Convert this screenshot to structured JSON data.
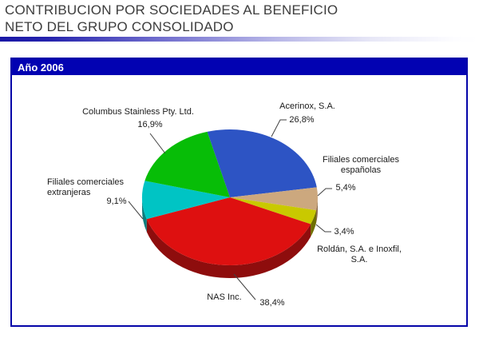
{
  "title": {
    "line1": "CONTRIBUCION POR SOCIEDADES AL BENEFICIO",
    "line2": "NETO DEL GRUPO CONSOLIDADO"
  },
  "panel": {
    "header": "Año 2006"
  },
  "chart_data": {
    "type": "pie",
    "title": "Año 2006",
    "style": "3d-pie",
    "unit": "%",
    "start_angle_clockwise_from_top_deg": -15,
    "legend_position": "none (callout labels with leader lines)",
    "slices": [
      {
        "label": "Acerinox, S.A.",
        "value": 26.8,
        "pct_label": "26,8%",
        "color": "#2d54c4",
        "side_color": "#1c3785"
      },
      {
        "label": "Filiales comerciales españolas",
        "value": 5.4,
        "pct_label": "5,4%",
        "color": "#cca87e",
        "side_color": "#8a6a4a"
      },
      {
        "label": "Roldán, S.A. e Inoxfil, S.A.",
        "value": 3.4,
        "pct_label": "3,4%",
        "color": "#c9c900",
        "side_color": "#6f7000"
      },
      {
        "label": "NAS Inc.",
        "value": 38.4,
        "pct_label": "38,4%",
        "color": "#de1010",
        "side_color": "#8e0d0d"
      },
      {
        "label": "Filiales comerciales extranjeras",
        "value": 9.1,
        "pct_label": "9,1%",
        "color": "#00c4c4",
        "side_color": "#0b7d7d"
      },
      {
        "label": "Columbus Stainless Pty. Ltd.",
        "value": 16.9,
        "pct_label": "16,9%",
        "color": "#07bd07",
        "side_color": "#0f6e0f"
      }
    ]
  }
}
